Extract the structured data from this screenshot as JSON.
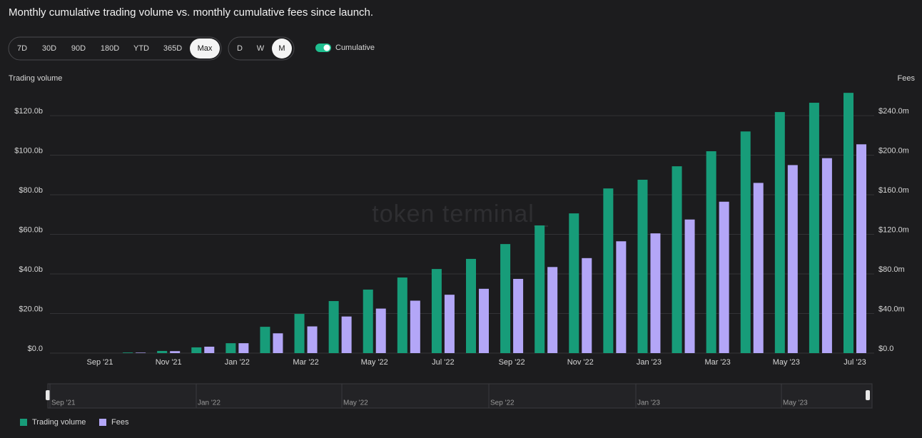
{
  "title": "Monthly cumulative trading volume vs. monthly cumulative fees since launch.",
  "controls": {
    "ranges": [
      "7D",
      "30D",
      "90D",
      "180D",
      "YTD",
      "365D",
      "Max"
    ],
    "selected_range_index": 6,
    "intervals": [
      "D",
      "W",
      "M"
    ],
    "selected_interval_index": 2,
    "toggle": "Cumulative",
    "toggle_on": true
  },
  "watermark": "token terminal_",
  "navigator": {
    "labels": [
      "Sep '21",
      "Jan '22",
      "May '22",
      "Sep '22",
      "Jan '23",
      "May '23"
    ]
  },
  "chart_data": {
    "type": "bar",
    "y_label": "Trading volume",
    "y2_label": "Fees",
    "categories": [
      "Sep '21",
      null,
      "Nov '21",
      null,
      "Jan '22",
      null,
      "Mar '22",
      null,
      "May '22",
      null,
      "Jul '22",
      null,
      "Sep '22",
      null,
      "Nov '22",
      null,
      "Jan '23",
      null,
      "Mar '23",
      null,
      "May '23",
      null,
      "Jul '23"
    ],
    "series": [
      {
        "name": "Trading volume",
        "color": "#179c79",
        "values": [
          0,
          0.3,
          1.1,
          2.9,
          5.0,
          13.3,
          19.8,
          26.3,
          32.1,
          38.2,
          42.5,
          47.6,
          55.1,
          64.5,
          70.6,
          83.2,
          87.6,
          94.4,
          102,
          112,
          121.8,
          126.5,
          131.5
        ]
      },
      {
        "name": "Fees",
        "color": "#b3a6f7",
        "axis": "y2",
        "values": [
          0,
          0.5,
          2,
          6.5,
          10,
          20,
          27,
          37,
          45,
          53,
          59,
          65,
          75,
          87,
          96,
          113,
          121,
          135,
          153,
          172,
          190,
          197,
          211
        ]
      }
    ],
    "ylim": [
      0,
      133
    ],
    "yticks": [
      {
        "value": 0,
        "label": "$0.0"
      },
      {
        "value": 20,
        "label": "$20.0b"
      },
      {
        "value": 40,
        "label": "$40.0b"
      },
      {
        "value": 60,
        "label": "$60.0b"
      },
      {
        "value": 80,
        "label": "$80.0b"
      },
      {
        "value": 100,
        "label": "$100.0b"
      },
      {
        "value": 120,
        "label": "$120.0b"
      }
    ],
    "y2lim": [
      0,
      266
    ],
    "y2ticks": [
      {
        "value": 0,
        "label": "$0.0"
      },
      {
        "value": 40,
        "label": "$40.0m"
      },
      {
        "value": 80,
        "label": "$80.0m"
      },
      {
        "value": 120,
        "label": "$120.0m"
      },
      {
        "value": 160,
        "label": "$160.0m"
      },
      {
        "value": 200,
        "label": "$200.0m"
      },
      {
        "value": 240,
        "label": "$240.0m"
      }
    ],
    "grid": true
  }
}
